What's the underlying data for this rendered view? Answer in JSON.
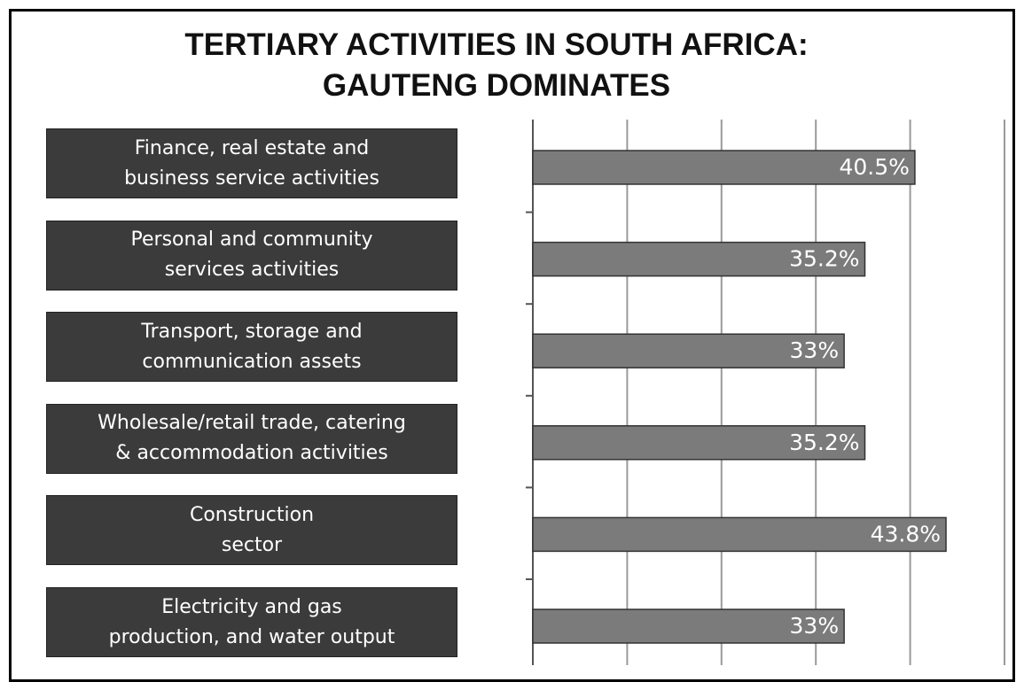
{
  "chart_data": {
    "type": "bar",
    "orientation": "horizontal",
    "title": "TERTIARY ACTIVITIES IN SOUTH AFRICA:\nGAUTENG DOMINATES",
    "categories": [
      "Finance, real estate and\nbusiness service activities",
      "Personal and community\nservices activities",
      "Transport, storage and\ncommunication assets",
      "Wholesale/retail trade, catering\n& accommodation activities",
      "Construction\nsector",
      "Electricity and gas\nproduction, and water output"
    ],
    "values": [
      40.5,
      35.2,
      33,
      35.2,
      43.8,
      33
    ],
    "value_labels": [
      "40.5%",
      "35.2%",
      "33%",
      "35.2%",
      "43.8%",
      "33%"
    ],
    "color": "#7b7b7b",
    "xlim": [
      0,
      50
    ],
    "xticks": [
      0,
      10,
      20,
      30,
      40,
      50
    ],
    "grid": true
  }
}
